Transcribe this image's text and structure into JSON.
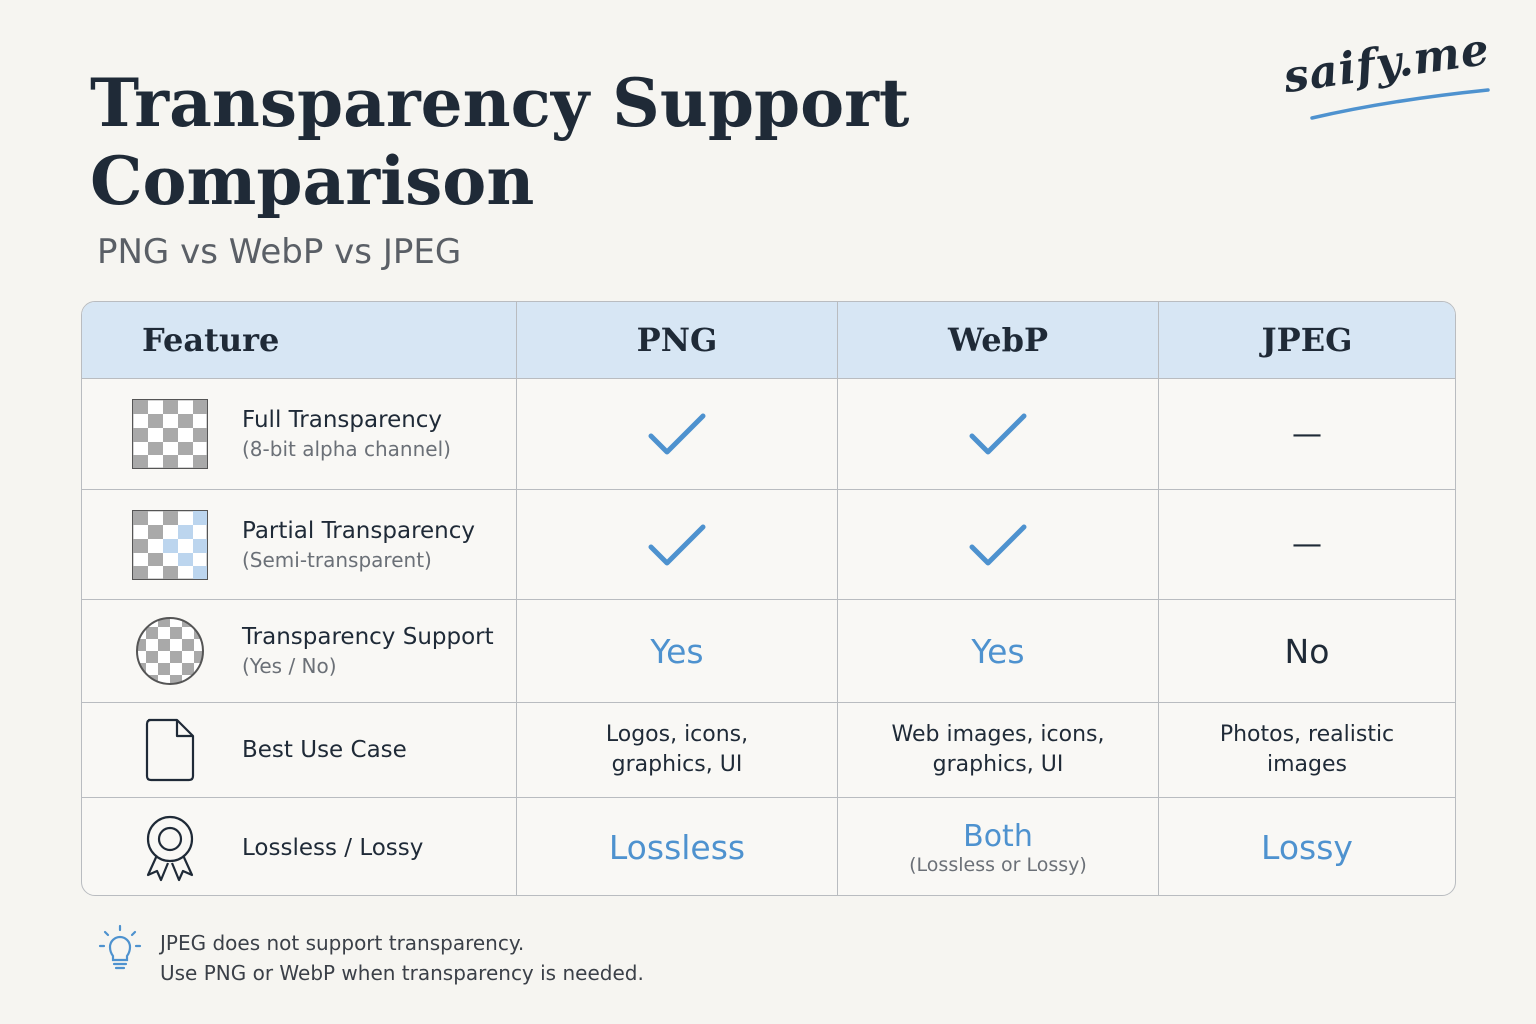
{
  "header": {
    "title_line1": "Transparency Support",
    "title_line2": "Comparison",
    "subtitle": "PNG vs WebP vs JPEG",
    "brand": "saify.me"
  },
  "table": {
    "columns": [
      "Feature",
      "PNG",
      "WebP",
      "JPEG"
    ],
    "rows": [
      {
        "icon": "checkerboard-icon",
        "label": "Full Transparency",
        "sub": "(8-bit alpha channel)",
        "png": "check",
        "webp": "check",
        "jpeg": "—"
      },
      {
        "icon": "partial-checkerboard-icon",
        "label": "Partial Transparency",
        "sub": "(Semi-transparent)",
        "png": "check",
        "webp": "check",
        "jpeg": "—"
      },
      {
        "icon": "checkered-circle-icon",
        "label": "Transparency Support",
        "sub": "(Yes / No)",
        "png": "Yes",
        "webp": "Yes",
        "jpeg": "No"
      },
      {
        "icon": "document-icon",
        "label": "Best Use Case",
        "png_lines": [
          "Logos, icons,",
          "graphics, UI"
        ],
        "webp_lines": [
          "Web images, icons,",
          "graphics, UI"
        ],
        "jpeg_lines": [
          "Photos, realistic",
          "images"
        ]
      },
      {
        "icon": "award-ribbon-icon",
        "label": "Lossless / Lossy",
        "png": "Lossless",
        "webp": "Both",
        "webp_sub": "(Lossless or Lossy)",
        "jpeg": "Lossy"
      }
    ]
  },
  "note": {
    "icon": "lightbulb-icon",
    "line1": "JPEG does not support transparency.",
    "line2": "Use PNG or WebP when transparency is needed."
  },
  "colors": {
    "accent": "#4e92cf",
    "header_bg": "#d7e6f4",
    "text": "#1f2a37",
    "background": "#f6f5f1"
  }
}
